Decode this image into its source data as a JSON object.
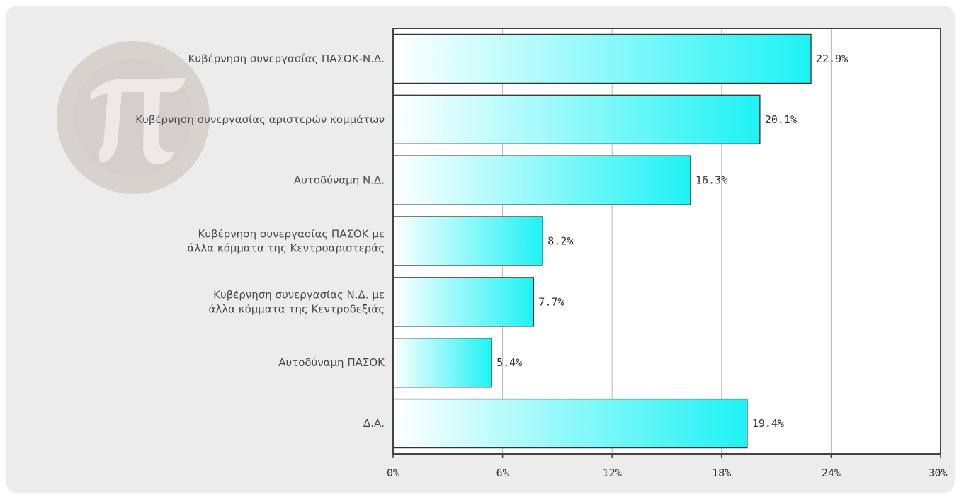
{
  "chart_data": {
    "type": "bar",
    "orientation": "horizontal",
    "categories": [
      [
        "Κυβέρνηση συνεργασίας ΠΑΣΟΚ-Ν.Δ."
      ],
      [
        "Κυβέρνηση συνεργασίας αριστερών κομμάτων"
      ],
      [
        "Αυτοδύναμη Ν.Δ."
      ],
      [
        "Κυβέρνηση συνεργασίας ΠΑΣΟΚ με",
        "άλλα κόμματα της Κεντροαριστεράς"
      ],
      [
        "Κυβέρνηση συνεργασίας Ν.Δ. με",
        "άλλα κόμματα της Κεντροδεξιάς"
      ],
      [
        "Αυτοδύναμη ΠΑΣΟΚ"
      ],
      [
        "Δ.Α."
      ]
    ],
    "values": [
      22.9,
      20.1,
      16.3,
      8.2,
      7.7,
      5.4,
      19.4
    ],
    "value_labels": [
      "22.9%",
      "20.1%",
      "16.3%",
      "8.2%",
      "7.7%",
      "5.4%",
      "19.4%"
    ],
    "xlim": [
      0,
      30
    ],
    "ticks": [
      0,
      6,
      12,
      18,
      24,
      30
    ],
    "tick_labels": [
      "0%",
      "6%",
      "12%",
      "18%",
      "24%",
      "30%"
    ],
    "grid": true,
    "legend": "none",
    "colors": {
      "bar_start": "#ffffff",
      "bar_end": "#1ef2f4",
      "bar_stroke": "#333333",
      "grid": "#b8b8b8",
      "axis": "#444444",
      "panel": "#ececec",
      "plot_bg": "#ffffff"
    },
    "watermark_icon": "pi-logo-icon"
  }
}
